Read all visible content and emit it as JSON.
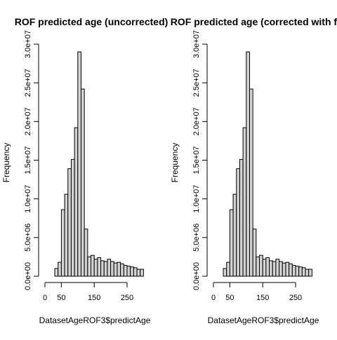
{
  "chart_data": [
    {
      "type": "bar",
      "title": "ROF predicted age (uncorrected)",
      "xlabel": "DatasetAgeROF3$predictAge",
      "ylabel": "Frequency",
      "bin_width": 10,
      "bin_start": 0,
      "xlim": [
        0,
        300
      ],
      "ylim": [
        0,
        30000000
      ],
      "xticks": [
        0,
        50,
        150,
        250
      ],
      "xtick_labels": [
        "0",
        "50",
        "150",
        "250"
      ],
      "yticks": [
        0,
        5000000,
        10000000,
        15000000,
        20000000,
        25000000,
        30000000
      ],
      "ytick_labels": [
        "0.0e+00",
        "5.0e+06",
        "1.0e+07",
        "1.5e+07",
        "2.0e+07",
        "2.5e+07",
        "3.0e+07"
      ],
      "values": [
        0,
        0,
        0,
        1000000,
        1800000,
        8600000,
        10600000,
        13900000,
        15100000,
        19200000,
        29000000,
        24200000,
        6100000,
        2500000,
        2700000,
        2200000,
        2400000,
        2000000,
        1900000,
        2200000,
        1900000,
        1700000,
        1800000,
        1600000,
        1400000,
        1300000,
        1200000,
        1100000,
        900000,
        900000
      ]
    },
    {
      "type": "bar",
      "title": "ROF predicted age (corrected with fire",
      "xlabel": "DatasetAgeROF3$predictAge",
      "ylabel": "Frequency",
      "bin_width": 10,
      "bin_start": 0,
      "xlim": [
        0,
        300
      ],
      "ylim": [
        0,
        30000000
      ],
      "xticks": [
        0,
        50,
        150,
        250
      ],
      "xtick_labels": [
        "0",
        "50",
        "150",
        "250"
      ],
      "yticks": [
        0,
        5000000,
        10000000,
        15000000,
        20000000,
        25000000,
        30000000
      ],
      "ytick_labels": [
        "0.0e+00",
        "5.0e+06",
        "1.0e+07",
        "1.5e+07",
        "2.0e+07",
        "2.5e+07",
        "3.0e+07"
      ],
      "values": [
        0,
        0,
        0,
        1000000,
        1800000,
        8600000,
        10600000,
        13900000,
        15100000,
        19200000,
        29000000,
        24200000,
        6100000,
        2500000,
        2700000,
        2200000,
        2400000,
        2000000,
        1900000,
        2200000,
        1900000,
        1700000,
        1800000,
        1600000,
        1400000,
        1300000,
        1200000,
        1100000,
        900000,
        900000
      ]
    }
  ]
}
